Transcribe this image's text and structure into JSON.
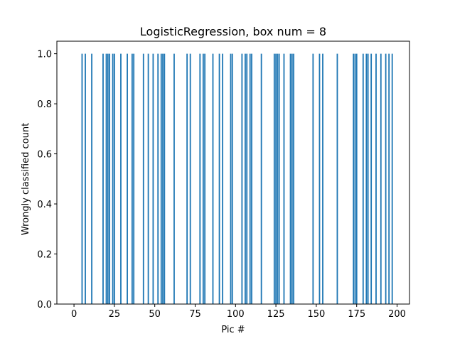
{
  "chart_data": {
    "type": "bar",
    "title": "LogisticRegression, box num = 8",
    "xlabel": "Pic #",
    "ylabel": "Wrongly classified count",
    "xlim": [
      -10.6,
      207.7
    ],
    "ylim": [
      0,
      1.05
    ],
    "x_ticks": [
      0,
      25,
      50,
      75,
      100,
      125,
      150,
      175,
      200
    ],
    "y_ticks": [
      0.0,
      0.2,
      0.4,
      0.6,
      0.8,
      1.0
    ],
    "x_tick_labels": [
      "0",
      "25",
      "50",
      "75",
      "100",
      "125",
      "150",
      "175",
      "200"
    ],
    "y_tick_labels": [
      "0.0",
      "0.2",
      "0.4",
      "0.6",
      "0.8",
      "1.0"
    ],
    "grid": false,
    "bar_color": "#1f77b4",
    "x": [
      5,
      7,
      11,
      18,
      20,
      21,
      22,
      24,
      25,
      29,
      33,
      36,
      37,
      43,
      46,
      49,
      52,
      54,
      55,
      56,
      62,
      70,
      72,
      78,
      80,
      81,
      86,
      90,
      92,
      97,
      98,
      104,
      106,
      107,
      109,
      110,
      116,
      124,
      125,
      126,
      127,
      130,
      134,
      135,
      136,
      148,
      152,
      154,
      163,
      173,
      174,
      175,
      179,
      181,
      182,
      184,
      187,
      190,
      193,
      195,
      197
    ],
    "values": [
      1,
      1,
      1,
      1,
      1,
      1,
      1,
      1,
      1,
      1,
      1,
      1,
      1,
      1,
      1,
      1,
      1,
      1,
      1,
      1,
      1,
      1,
      1,
      1,
      1,
      1,
      1,
      1,
      1,
      1,
      1,
      1,
      1,
      1,
      1,
      1,
      1,
      1,
      1,
      1,
      1,
      1,
      1,
      1,
      1,
      1,
      1,
      1,
      1,
      1,
      1,
      1,
      1,
      1,
      1,
      1,
      1,
      1,
      1,
      1,
      1
    ]
  }
}
